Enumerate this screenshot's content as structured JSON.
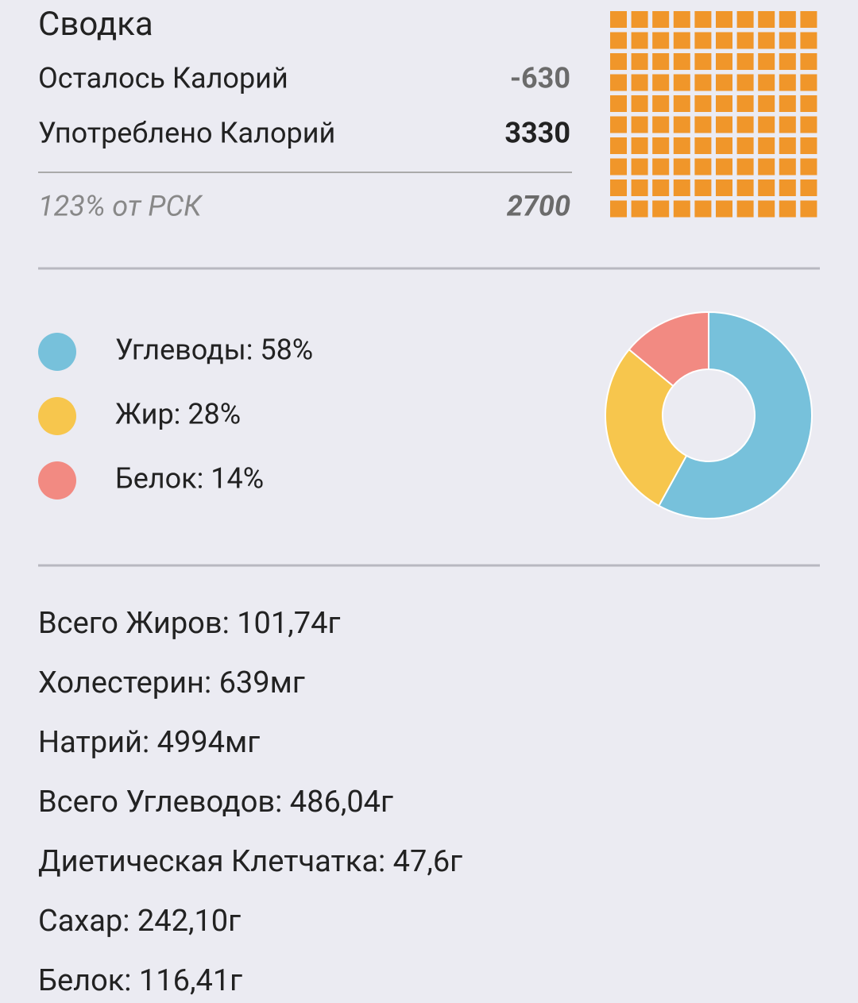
{
  "summary": {
    "title": "Сводка",
    "rows": [
      {
        "label": "Осталось Калорий",
        "value": "-630"
      },
      {
        "label": "Употреблено Калорий",
        "value": "3330"
      }
    ],
    "footer": {
      "label": "123% от РСК",
      "value": "2700"
    }
  },
  "chart_data": {
    "type": "pie",
    "donut": true,
    "categories": [
      "Углеводы: 58%",
      "Жир: 28%",
      "Белок: 14%"
    ],
    "values": [
      58,
      28,
      14
    ],
    "colors": [
      "#77c1db",
      "#f7c64d",
      "#f28a82"
    ]
  },
  "nutrients": [
    "Всего Жиров: 101,74г",
    "Холестерин: 639мг",
    "Натрий: 4994мг",
    "Всего Углеводов: 486,04г",
    "Диетическая Клетчатка: 47,6г",
    "Сахар: 242,10г",
    "Белок: 116,41г"
  ]
}
